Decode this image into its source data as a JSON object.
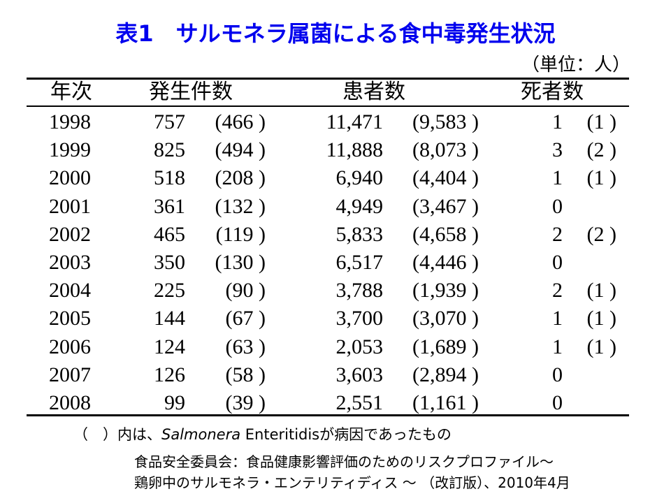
{
  "title": "表1　サルモネラ属菌による食中毒発生状況",
  "unit": "（単位：人）",
  "table": {
    "header": [
      "年次",
      "発生件数",
      "患者数",
      "死者数"
    ],
    "rows": [
      {
        "year": "1998",
        "cases": "757",
        "cases_note": "(466 )",
        "patients": "11,471",
        "patients_note": "(9,583 )",
        "deaths": "1",
        "deaths_note": "(1 )"
      },
      {
        "year": "1999",
        "cases": "825",
        "cases_note": "(494 )",
        "patients": "11,888",
        "patients_note": "(8,073 )",
        "deaths": "3",
        "deaths_note": "(2 )"
      },
      {
        "year": "2000",
        "cases": "518",
        "cases_note": "(208 )",
        "patients": "6,940",
        "patients_note": "(4,404 )",
        "deaths": "1",
        "deaths_note": "(1 )"
      },
      {
        "year": "2001",
        "cases": "361",
        "cases_note": "(132 )",
        "patients": "4,949",
        "patients_note": "(3,467 )",
        "deaths": "0"
      },
      {
        "year": "2002",
        "cases": "465",
        "cases_note": "(119 )",
        "patients": "5,833",
        "patients_note": "(4,658 )",
        "deaths": "2",
        "deaths_note": "(2 )"
      },
      {
        "year": "2003",
        "cases": "350",
        "cases_note": "(130 )",
        "patients": "6,517",
        "patients_note": "(4,446 )",
        "deaths": "0"
      },
      {
        "year": "2004",
        "cases": "225",
        "cases_note": "(90 )",
        "patients": "3,788",
        "patients_note": "(1,939 )",
        "deaths": "2",
        "deaths_note": "(1 )"
      },
      {
        "year": "2005",
        "cases": "144",
        "cases_note": "(67 )",
        "patients": "3,700",
        "patients_note": "(3,070 )",
        "deaths": "1",
        "deaths_note": "(1 )"
      },
      {
        "year": "2006",
        "cases": "124",
        "cases_note": "(63 )",
        "patients": "2,053",
        "patients_note": "(1,689 )",
        "deaths": "1",
        "deaths_note": "(1 )"
      },
      {
        "year": "2007",
        "cases": "126",
        "cases_note": "(58 )",
        "patients": "3,603",
        "patients_note": "(2,894 )",
        "deaths": "0"
      },
      {
        "year": "2008",
        "cases": "99",
        "cases_note": "(39 )",
        "patients": "2,551",
        "patients_note": "(1,161 )",
        "deaths": "0"
      }
    ]
  },
  "footnote": [
    "（　）内は、",
    "Salmonera",
    " Enteritidisが病因であったもの"
  ],
  "source": [
    "食品安全委員会：食品健康影響評価のためのリスクプロファイル～",
    "鶏卵中のサルモネラ・エンテリティディス ～ （改訂版）、2010年4月"
  ]
}
